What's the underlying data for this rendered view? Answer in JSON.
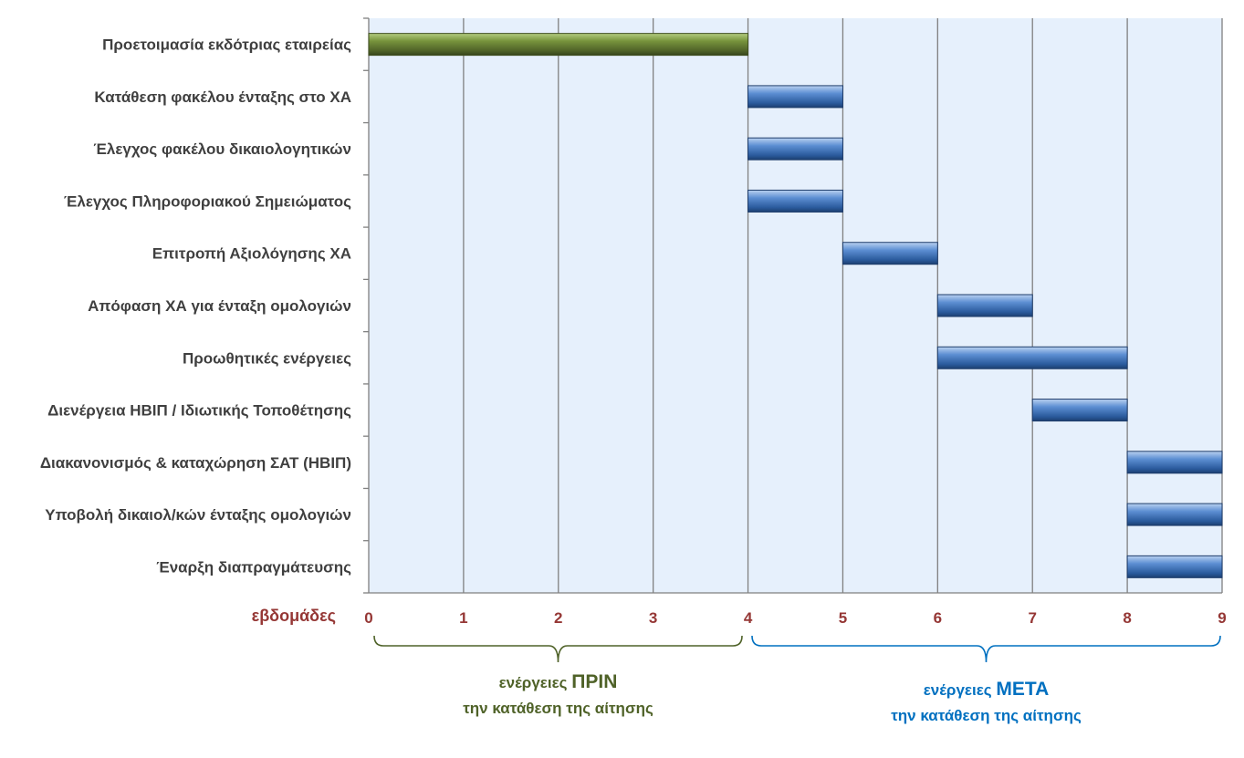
{
  "chart_data": {
    "type": "bar",
    "orientation": "horizontal",
    "stacked": true,
    "categories": [
      "Προετοιμασία εκδότριας εταιρείας",
      "Κατάθεση φακέλου ένταξης στο ΧΑ",
      "Έλεγχος φακέλου δικαιολογητικών",
      "Έλεγχος Πληροφοριακού Σημειώματος",
      "Επιτροπή Αξιολόγησης ΧΑ",
      "Απόφαση ΧΑ για ένταξη ομολογιών",
      "Προωθητικές ενέργειες",
      "Διενέργεια ΗΒΙΠ / Ιδιωτικής Τοποθέτησης",
      "Διακανονισμός & καταχώρηση ΣΑΤ (ΗΒΙΠ)",
      "Υποβολή δικαιολ/κών ένταξης ομολογιών",
      "Έναρξη διαπραγμάτευσης"
    ],
    "series": [
      {
        "role": "offset",
        "values": [
          0,
          4,
          4,
          4,
          5,
          6,
          6,
          7,
          8,
          8,
          8
        ]
      },
      {
        "role": "duration",
        "values": [
          4,
          1,
          1,
          1,
          1,
          1,
          2,
          1,
          1,
          1,
          1
        ]
      }
    ],
    "bar_colors": [
      "#77933c",
      "#4f81bd",
      "#4f81bd",
      "#4f81bd",
      "#4f81bd",
      "#4f81bd",
      "#4f81bd",
      "#4f81bd",
      "#4f81bd",
      "#4f81bd",
      "#4f81bd"
    ],
    "xlabel": "εβδομάδες",
    "xlim": [
      0,
      9
    ],
    "x_ticks": [
      "0",
      "1",
      "2",
      "3",
      "4",
      "5",
      "6",
      "7",
      "8",
      "9"
    ],
    "grid": true,
    "legend": "none",
    "annotations": [
      {
        "range": [
          0,
          4
        ],
        "line1_prefix": "ενέργειες ",
        "line1_emphasis": "ΠΡΙΝ",
        "line2": "την κατάθεση της αίτησης",
        "color": "#4f6228"
      },
      {
        "range": [
          4,
          9
        ],
        "line1_prefix": "ενέργειες ",
        "line1_emphasis": "ΜΕΤΑ",
        "line2": "την κατάθεση της αίτησης",
        "color": "#0070c0"
      }
    ]
  },
  "colors": {
    "plot_background": "#e6f0fc",
    "gridline": "#808080",
    "label_text": "#3f3f3f",
    "tick_text": "#953735"
  }
}
